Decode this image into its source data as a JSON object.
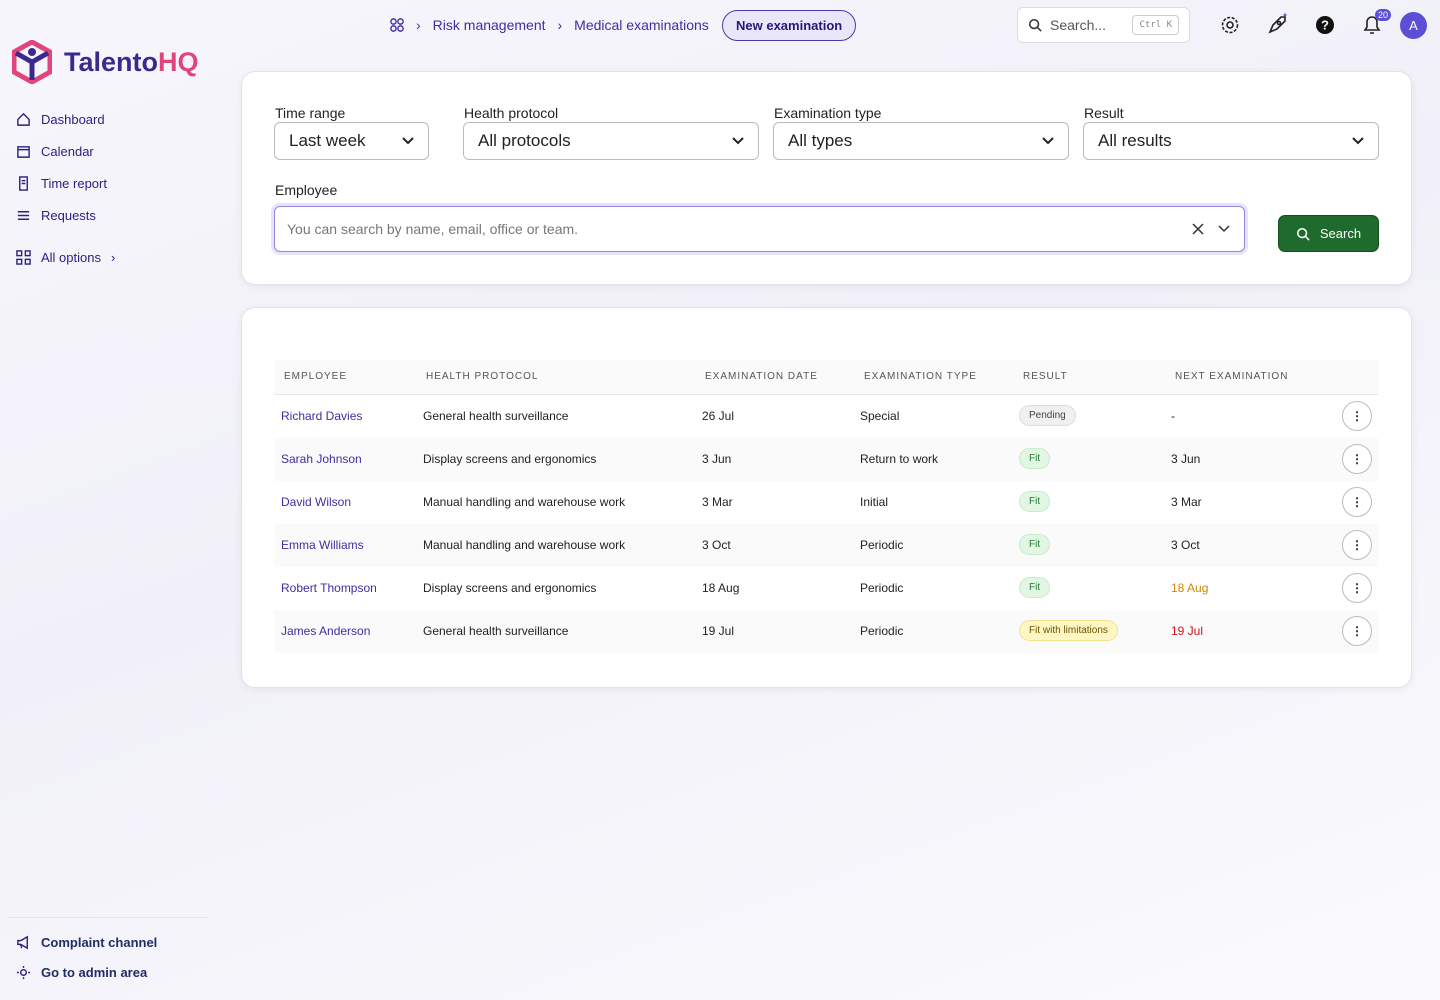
{
  "brand": {
    "name_main": "Talento",
    "name_accent": "HQ"
  },
  "nav": {
    "items": [
      "Dashboard",
      "Calendar",
      "Time report",
      "Requests"
    ],
    "all_options": "All options",
    "footer": [
      "Complaint channel",
      "Go to admin area"
    ]
  },
  "topbar": {
    "breadcrumbs": [
      "Risk management",
      "Medical examinations"
    ],
    "action": "New examination",
    "search_placeholder": "Search...",
    "shortcut": "Ctrl K",
    "notifications": "20",
    "avatar": "A"
  },
  "filters": {
    "fields": [
      {
        "label": "Time range",
        "value": "Last week"
      },
      {
        "label": "Health protocol",
        "value": "All protocols"
      },
      {
        "label": "Examination type",
        "value": "All types"
      },
      {
        "label": "Result",
        "value": "All results"
      }
    ],
    "employee_label": "Employee",
    "employee_placeholder": "You can search by name, email, office or team.",
    "search_button": "Search"
  },
  "table": {
    "headers": [
      "EMPLOYEE",
      "HEALTH PROTOCOL",
      "EXAMINATION DATE",
      "EXAMINATION TYPE",
      "RESULT",
      "NEXT EXAMINATION"
    ],
    "rows": [
      {
        "employee": "Richard Davies",
        "protocol": "General health surveillance",
        "date": "26 Jul",
        "type": "Special",
        "result": "Pending",
        "result_style": "neutral",
        "next": "-",
        "next_color": "#222222"
      },
      {
        "employee": "Sarah Johnson",
        "protocol": "Display screens and ergonomics",
        "date": "3 Jun",
        "type": "Return to work",
        "result": "Fit",
        "result_style": "success",
        "next": "3 Jun",
        "next_color": "#222222"
      },
      {
        "employee": "David Wilson",
        "protocol": "Manual handling and warehouse work",
        "date": "3 Mar",
        "type": "Initial",
        "result": "Fit",
        "result_style": "success",
        "next": "3 Mar",
        "next_color": "#222222"
      },
      {
        "employee": "Emma Williams",
        "protocol": "Manual handling and warehouse work",
        "date": "3 Oct",
        "type": "Periodic",
        "result": "Fit",
        "result_style": "success",
        "next": "3 Oct",
        "next_color": "#222222"
      },
      {
        "employee": "Robert Thompson",
        "protocol": "Display screens and ergonomics",
        "date": "18 Aug",
        "type": "Periodic",
        "result": "Fit",
        "result_style": "success",
        "next": "18 Aug",
        "next_color": "#d08a00"
      },
      {
        "employee": "James Anderson",
        "protocol": "General health surveillance",
        "date": "19 Jul",
        "type": "Periodic",
        "result": "Fit with limitations",
        "result_style": "warning",
        "next": "19 Jul",
        "next_color": "#d4111c"
      }
    ]
  }
}
